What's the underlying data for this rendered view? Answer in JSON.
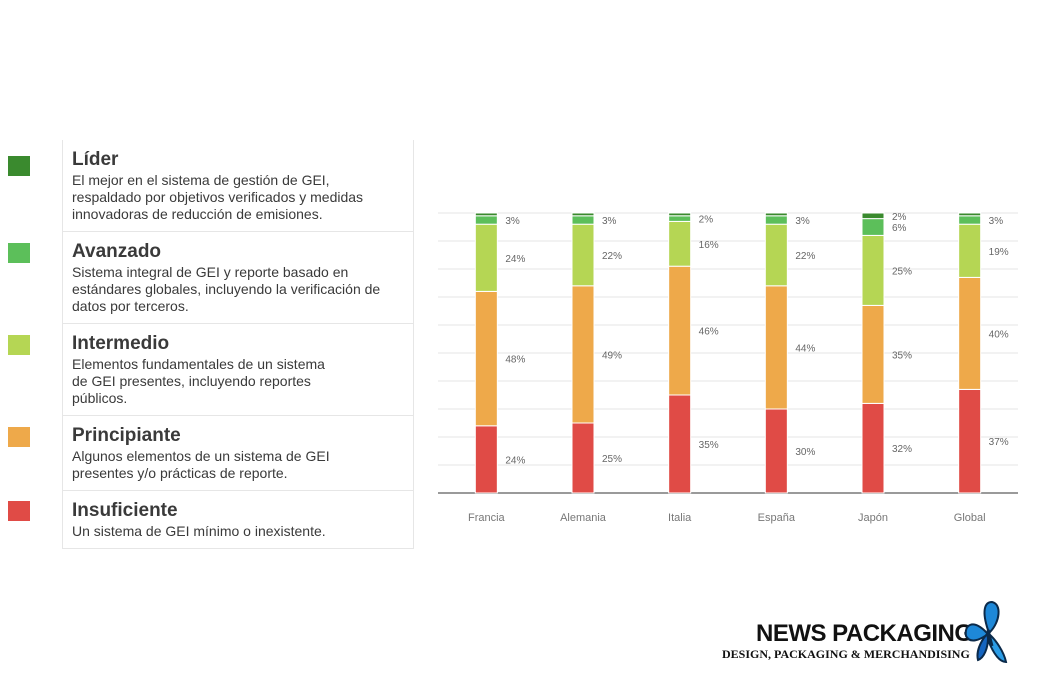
{
  "legend": {
    "items": [
      {
        "title": "Líder",
        "desc": "El mejor en el sistema de gestión de GEI, respaldado por objetivos verificados y medidas innovadoras de reducción de emisiones.",
        "color": "#3a8a2e"
      },
      {
        "title": "Avanzado",
        "desc": "Sistema integral de GEI y reporte basado en estándares globales, incluyendo la verificación de datos por terceros.",
        "color": "#5cbf5a"
      },
      {
        "title": "Intermedio",
        "desc": "Elementos fundamentales de un sistema de GEI presentes, incluyendo reportes públicos.",
        "color": "#b5d654"
      },
      {
        "title": "Principiante",
        "desc": "Algunos elementos de un sistema de GEI presentes y/o prácticas de reporte.",
        "color": "#eea94a"
      },
      {
        "title": "Insuficiente",
        "desc": "Un sistema de GEI mínimo o inexistente.",
        "color": "#e04b46"
      }
    ]
  },
  "chart_data": {
    "type": "bar",
    "stacked": true,
    "categories": [
      "Francia",
      "Alemania",
      "Italia",
      "España",
      "Japón",
      "Global"
    ],
    "series": [
      {
        "name": "Insuficiente",
        "color": "#e04b46",
        "values": [
          24,
          25,
          35,
          30,
          32,
          37
        ],
        "labels": [
          "24%",
          "25%",
          "35%",
          "30%",
          "32%",
          "37%"
        ]
      },
      {
        "name": "Principiante",
        "color": "#eea94a",
        "values": [
          48,
          49,
          46,
          44,
          35,
          40
        ],
        "labels": [
          "48%",
          "49%",
          "46%",
          "44%",
          "35%",
          "40%"
        ]
      },
      {
        "name": "Intermedio",
        "color": "#b5d654",
        "values": [
          24,
          22,
          16,
          22,
          25,
          19
        ],
        "labels": [
          "24%",
          "22%",
          "16%",
          "22%",
          "25%",
          "19%"
        ]
      },
      {
        "name": "Avanzado",
        "color": "#5cbf5a",
        "values": [
          3,
          3,
          2,
          3,
          6,
          3
        ],
        "labels": [
          "3%",
          "3%",
          "2%",
          "3%",
          "6%",
          "3%"
        ]
      },
      {
        "name": "Líder",
        "color": "#3a8a2e",
        "values": [
          1,
          1,
          1,
          1,
          2,
          1
        ],
        "labels": [
          "",
          "",
          "",
          "",
          "2%",
          ""
        ]
      }
    ],
    "ylim": [
      0,
      100
    ],
    "grid": true
  },
  "logo": {
    "title": "NEWS PACKAGING",
    "subtitle": "DESIGN, PACKAGING & MERCHANDISING"
  }
}
